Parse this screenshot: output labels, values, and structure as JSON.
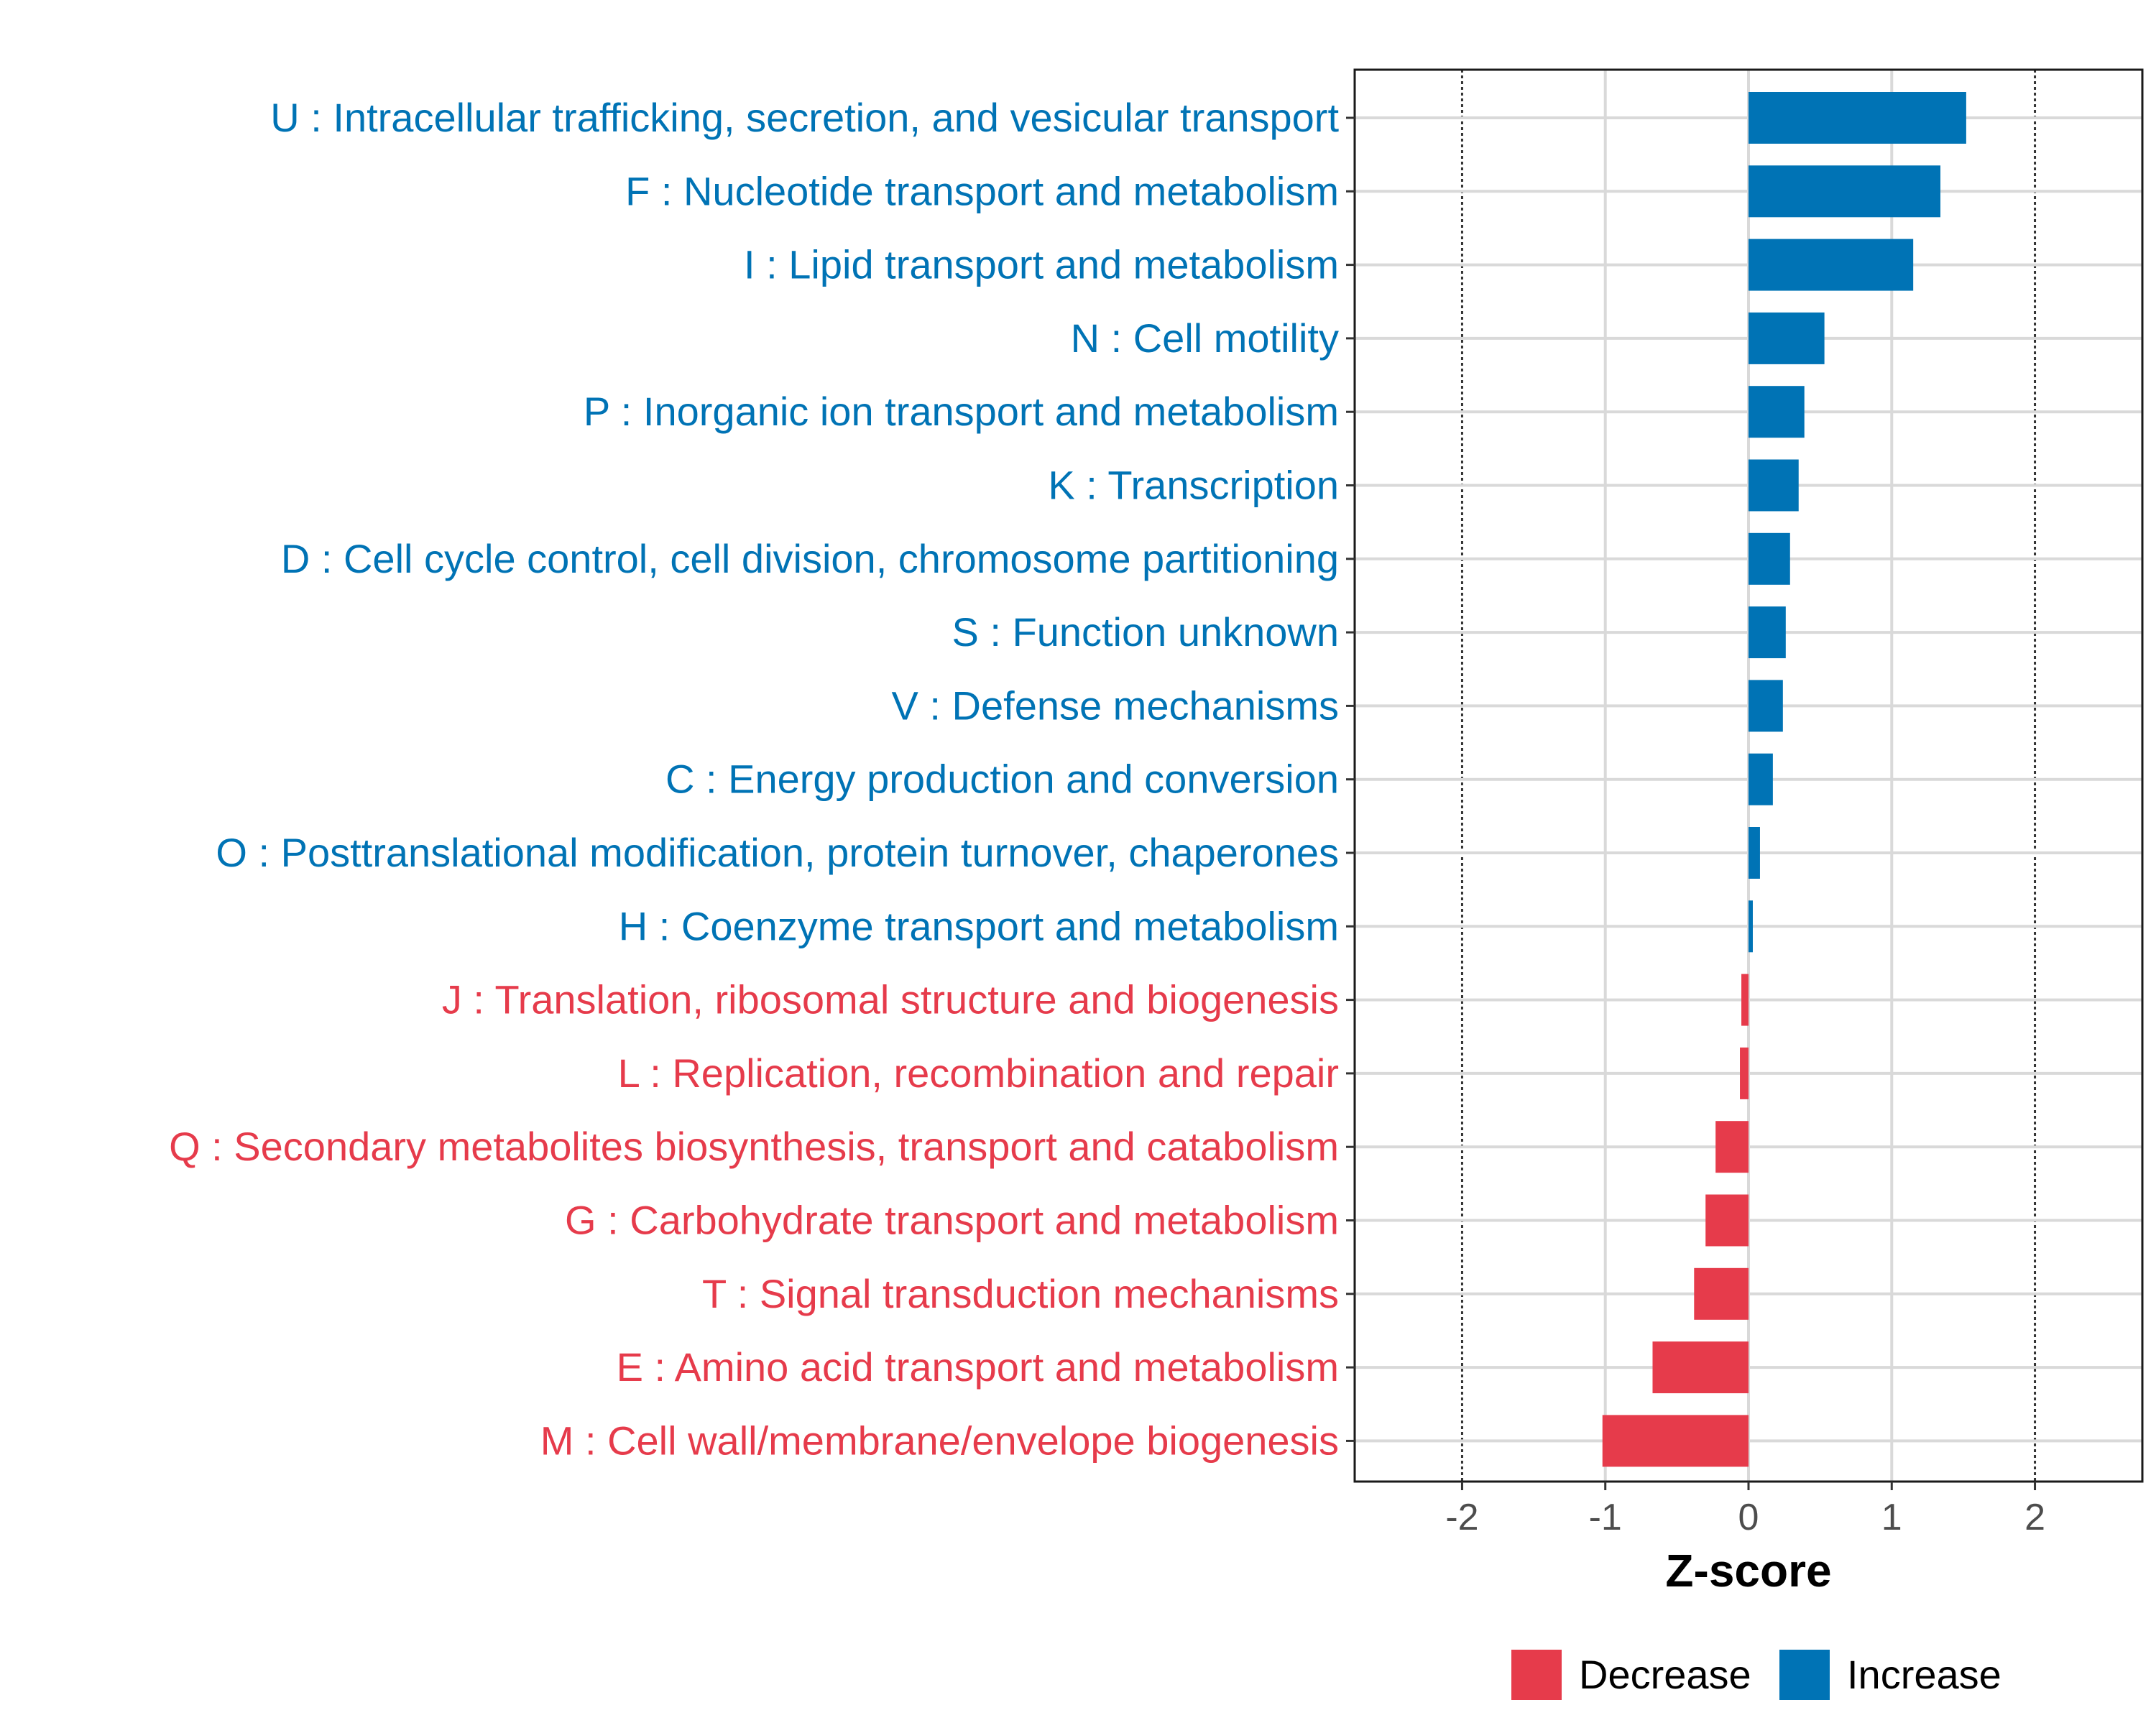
{
  "chart_data": {
    "type": "bar",
    "orientation": "horizontal",
    "xlabel": "Z-score",
    "ylabel": "",
    "xlim": [
      -2.75,
      2.75
    ],
    "x_ticks": [
      -2,
      -1,
      0,
      1,
      2
    ],
    "x_tick_labels": [
      "-2",
      "-1",
      "0",
      "1",
      "2"
    ],
    "reference_lines": [
      -2,
      2
    ],
    "grid": true,
    "legend_position": "bottom",
    "colors": {
      "Increase": "#0073B5",
      "Decrease": "#E63B4B"
    },
    "categories": [
      "U : Intracellular trafficking, secretion, and vesicular transport",
      "F : Nucleotide transport and metabolism",
      "I : Lipid transport and metabolism",
      "N : Cell motility",
      "P : Inorganic ion transport and metabolism",
      "K : Transcription",
      "D : Cell cycle control, cell division, chromosome partitioning",
      "S : Function unknown",
      "V : Defense mechanisms",
      "C : Energy production and conversion",
      "O : Posttranslational modification, protein turnover, chaperones",
      "H : Coenzyme transport and metabolism",
      "J : Translation, ribosomal structure and biogenesis",
      "L : Replication, recombination and repair",
      "Q : Secondary metabolites biosynthesis, transport and catabolism",
      "G : Carbohydrate transport and metabolism",
      "T : Signal transduction mechanisms",
      "E : Amino acid transport and metabolism",
      "M : Cell wall/membrane/envelope biogenesis"
    ],
    "values": [
      1.52,
      1.34,
      1.15,
      0.53,
      0.39,
      0.35,
      0.29,
      0.26,
      0.24,
      0.17,
      0.08,
      0.03,
      -0.05,
      -0.06,
      -0.23,
      -0.3,
      -0.38,
      -0.67,
      -1.02
    ],
    "groups": [
      "Increase",
      "Increase",
      "Increase",
      "Increase",
      "Increase",
      "Increase",
      "Increase",
      "Increase",
      "Increase",
      "Increase",
      "Increase",
      "Increase",
      "Decrease",
      "Decrease",
      "Decrease",
      "Decrease",
      "Decrease",
      "Decrease",
      "Decrease"
    ],
    "legend": [
      {
        "label": "Decrease"
      },
      {
        "label": "Increase"
      }
    ]
  }
}
